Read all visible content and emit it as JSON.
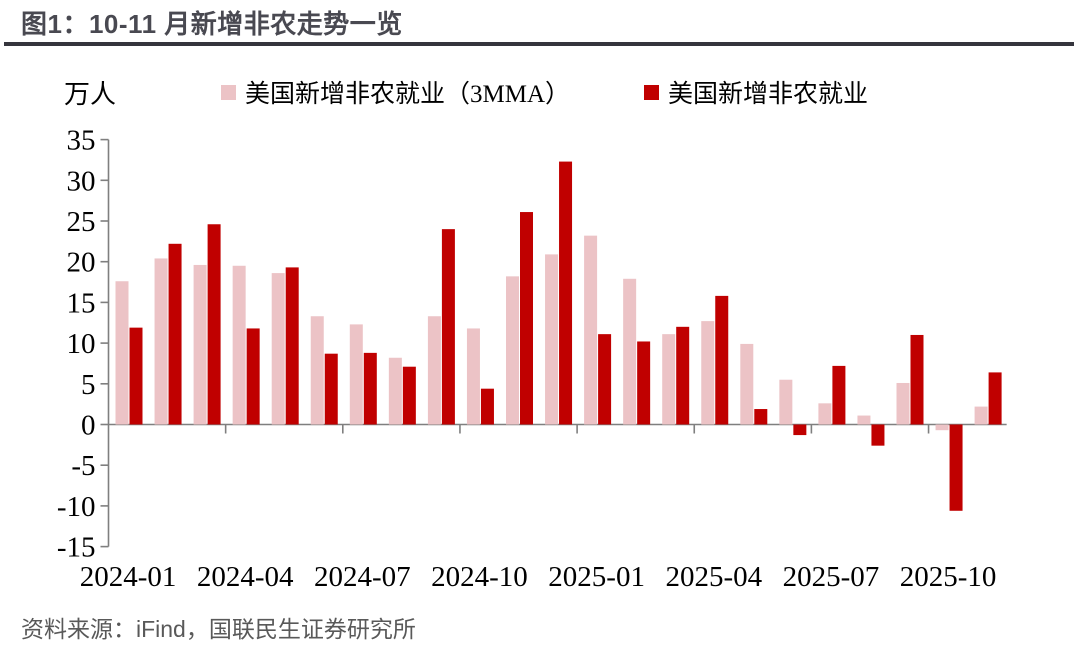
{
  "page": {
    "title": "图1：10-11 月新增非农走势一览",
    "source": "资料来源：iFind，国联民生证券研究所"
  },
  "chart_data": {
    "type": "bar",
    "title": "10-11 月新增非农走势一览",
    "unit_label": "万人",
    "xlabel": "",
    "ylabel": "万人",
    "ylim": [
      -15,
      35
    ],
    "ytick_step": 5,
    "grid": false,
    "legend_position": "top",
    "xtick_labels_shown": [
      "2024-01",
      "2024-04",
      "2024-07",
      "2024-10",
      "2025-01",
      "2025-04",
      "2025-07",
      "2025-10"
    ],
    "categories": [
      "2024-01",
      "2024-02",
      "2024-03",
      "2024-04",
      "2024-05",
      "2024-06",
      "2024-07",
      "2024-08",
      "2024-09",
      "2024-10",
      "2024-11",
      "2024-12",
      "2025-01",
      "2025-02",
      "2025-03",
      "2025-04",
      "2025-05",
      "2025-06",
      "2025-07",
      "2025-08",
      "2025-09",
      "2025-10",
      "2025-11"
    ],
    "series": [
      {
        "name": "美国新增非农就业（3MMA）",
        "color": "#ecc3c6",
        "values": [
          17.6,
          20.4,
          19.6,
          19.5,
          18.6,
          13.3,
          12.3,
          8.2,
          13.3,
          11.8,
          18.2,
          20.9,
          23.2,
          17.9,
          11.1,
          12.7,
          9.9,
          5.5,
          2.6,
          1.1,
          5.1,
          -0.7,
          2.2
        ]
      },
      {
        "name": "美国新增非农就业",
        "color": "#c00000",
        "values": [
          11.9,
          22.2,
          24.6,
          11.8,
          19.3,
          8.7,
          8.8,
          7.1,
          24.0,
          4.4,
          26.1,
          32.3,
          11.1,
          10.2,
          12.0,
          15.8,
          1.9,
          -1.3,
          7.2,
          -2.6,
          11.0,
          -10.6,
          6.4
        ]
      }
    ]
  },
  "colors": {
    "axis": "#7f7f7f",
    "title_text": "#494951",
    "title_rule": "#35353d",
    "source_text": "#595959"
  }
}
